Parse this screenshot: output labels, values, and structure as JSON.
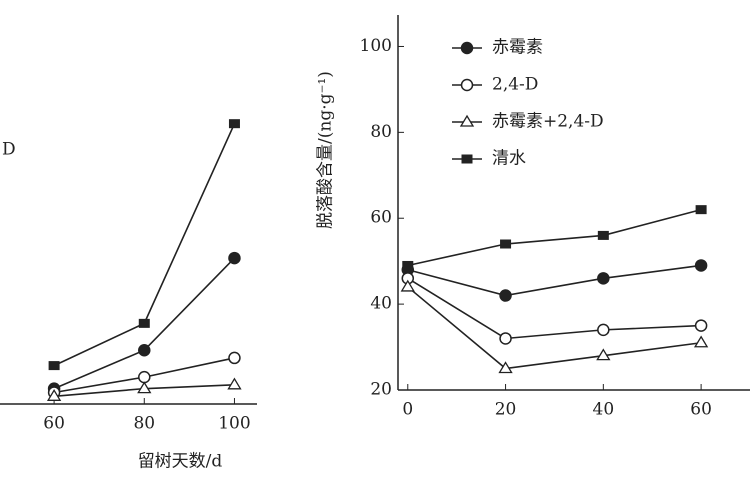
{
  "chart_data": [
    {
      "type": "line",
      "annotation": "D",
      "x_label": "留树天数/d",
      "x": [
        60,
        80,
        100
      ],
      "xlim": [
        48,
        105
      ],
      "xticks": [
        60,
        80,
        100
      ],
      "ylim": [
        0,
        100
      ],
      "series": [
        {
          "marker": "circle-filled",
          "color": "#222",
          "values": [
            4,
            14,
            38
          ]
        },
        {
          "marker": "circle-open",
          "color": "#222",
          "values": [
            3,
            7,
            12
          ]
        },
        {
          "marker": "triangle-open",
          "color": "#222",
          "values": [
            2,
            4,
            5
          ]
        },
        {
          "marker": "square-filled",
          "color": "#222",
          "values": [
            10,
            21,
            73
          ]
        }
      ]
    },
    {
      "type": "line",
      "y_label": "脱落酸含量/(ng·g⁻¹)",
      "legend": true,
      "x": [
        0,
        20,
        40,
        60
      ],
      "xlim": [
        -2,
        70
      ],
      "xticks": [
        0,
        20,
        40,
        60
      ],
      "ylim": [
        20,
        105
      ],
      "yticks": [
        20,
        40,
        60,
        80,
        100
      ],
      "series": [
        {
          "name": "赤霉素",
          "marker": "circle-filled",
          "color": "#222",
          "values": [
            48,
            42,
            46,
            49
          ]
        },
        {
          "name": "2,4-D",
          "marker": "circle-open",
          "color": "#222",
          "values": [
            46,
            32,
            34,
            35
          ]
        },
        {
          "name": "赤霉素+2,4-D",
          "marker": "triangle-open",
          "color": "#222",
          "values": [
            44,
            25,
            28,
            31
          ]
        },
        {
          "name": "清水",
          "marker": "square-filled",
          "color": "#222",
          "values": [
            49,
            54,
            56,
            62
          ]
        }
      ]
    }
  ]
}
